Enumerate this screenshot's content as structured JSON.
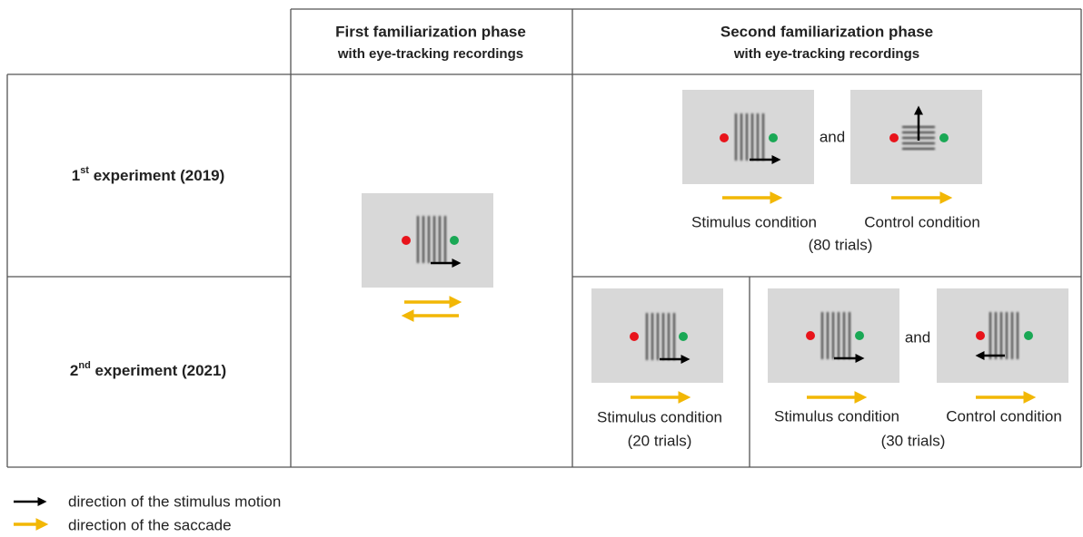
{
  "header": {
    "first_phase": {
      "title": "First familiarization phase",
      "subtitle": "with eye-tracking recordings"
    },
    "second_phase": {
      "title": "Second familiarization phase",
      "subtitle": "with eye-tracking recordings"
    }
  },
  "rows": [
    {
      "ordinal": "1",
      "suffix": "st",
      "rest": " experiment (2019)"
    },
    {
      "ordinal": "2",
      "suffix": "nd",
      "rest": " experiment (2021)"
    }
  ],
  "experiment_1": {
    "conjunction": "and",
    "conditions": [
      "Stimulus condition",
      "Control condition"
    ],
    "trials": "(80 trials)"
  },
  "experiment_2": {
    "single": {
      "condition": "Stimulus condition",
      "trials": "(20 trials)"
    },
    "pair": {
      "conjunction": "and",
      "conditions": [
        "Stimulus condition",
        "Control condition"
      ],
      "trials": "(30 trials)"
    }
  },
  "legend": [
    "direction of the stimulus motion",
    "direction of the saccade"
  ]
}
